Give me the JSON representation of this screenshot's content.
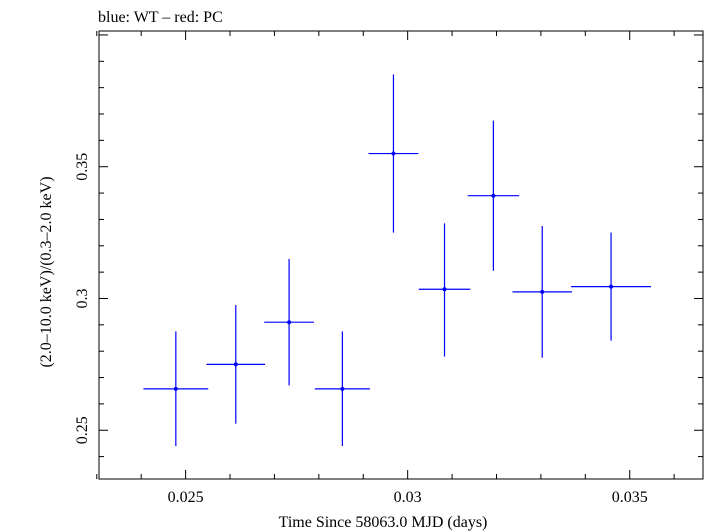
{
  "chart_data": {
    "type": "scatter",
    "title": "blue: WT – red: PC",
    "xlabel": "Time Since 58063.0 MJD (days)",
    "ylabel": "(2.0–10.0 keV)/(0.3–2.0 keV)",
    "xlim": [
      0.02305,
      0.03665
    ],
    "ylim": [
      0.2315,
      0.4015
    ],
    "x_ticks": [
      "0.025",
      "0.03",
      "0.035"
    ],
    "y_ticks": [
      "0.25",
      "0.3",
      "0.35"
    ],
    "grid": false,
    "series": [
      {
        "color": "#0000ff",
        "points": [
          {
            "x": 0.02478,
            "xerr": 0.00073,
            "y": 0.2657,
            "yerr_low": 0.0217,
            "yerr_high": 0.0218
          },
          {
            "x": 0.02613,
            "xerr": 0.00066,
            "y": 0.275,
            "yerr_low": 0.0225,
            "yerr_high": 0.0225
          },
          {
            "x": 0.02733,
            "xerr": 0.00056,
            "y": 0.291,
            "yerr_low": 0.024,
            "yerr_high": 0.024
          },
          {
            "x": 0.02853,
            "xerr": 0.00062,
            "y": 0.2657,
            "yerr_low": 0.0217,
            "yerr_high": 0.0218
          },
          {
            "x": 0.02968,
            "xerr": 0.00056,
            "y": 0.355,
            "yerr_low": 0.03,
            "yerr_high": 0.03
          },
          {
            "x": 0.03083,
            "xerr": 0.00058,
            "y": 0.3035,
            "yerr_low": 0.0255,
            "yerr_high": 0.025
          },
          {
            "x": 0.03193,
            "xerr": 0.00058,
            "y": 0.339,
            "yerr_low": 0.0285,
            "yerr_high": 0.0285
          },
          {
            "x": 0.03303,
            "xerr": 0.00067,
            "y": 0.3025,
            "yerr_low": 0.025,
            "yerr_high": 0.025
          },
          {
            "x": 0.03458,
            "xerr": 0.0009,
            "y": 0.3045,
            "yerr_low": 0.0205,
            "yerr_high": 0.0205
          }
        ]
      }
    ]
  }
}
